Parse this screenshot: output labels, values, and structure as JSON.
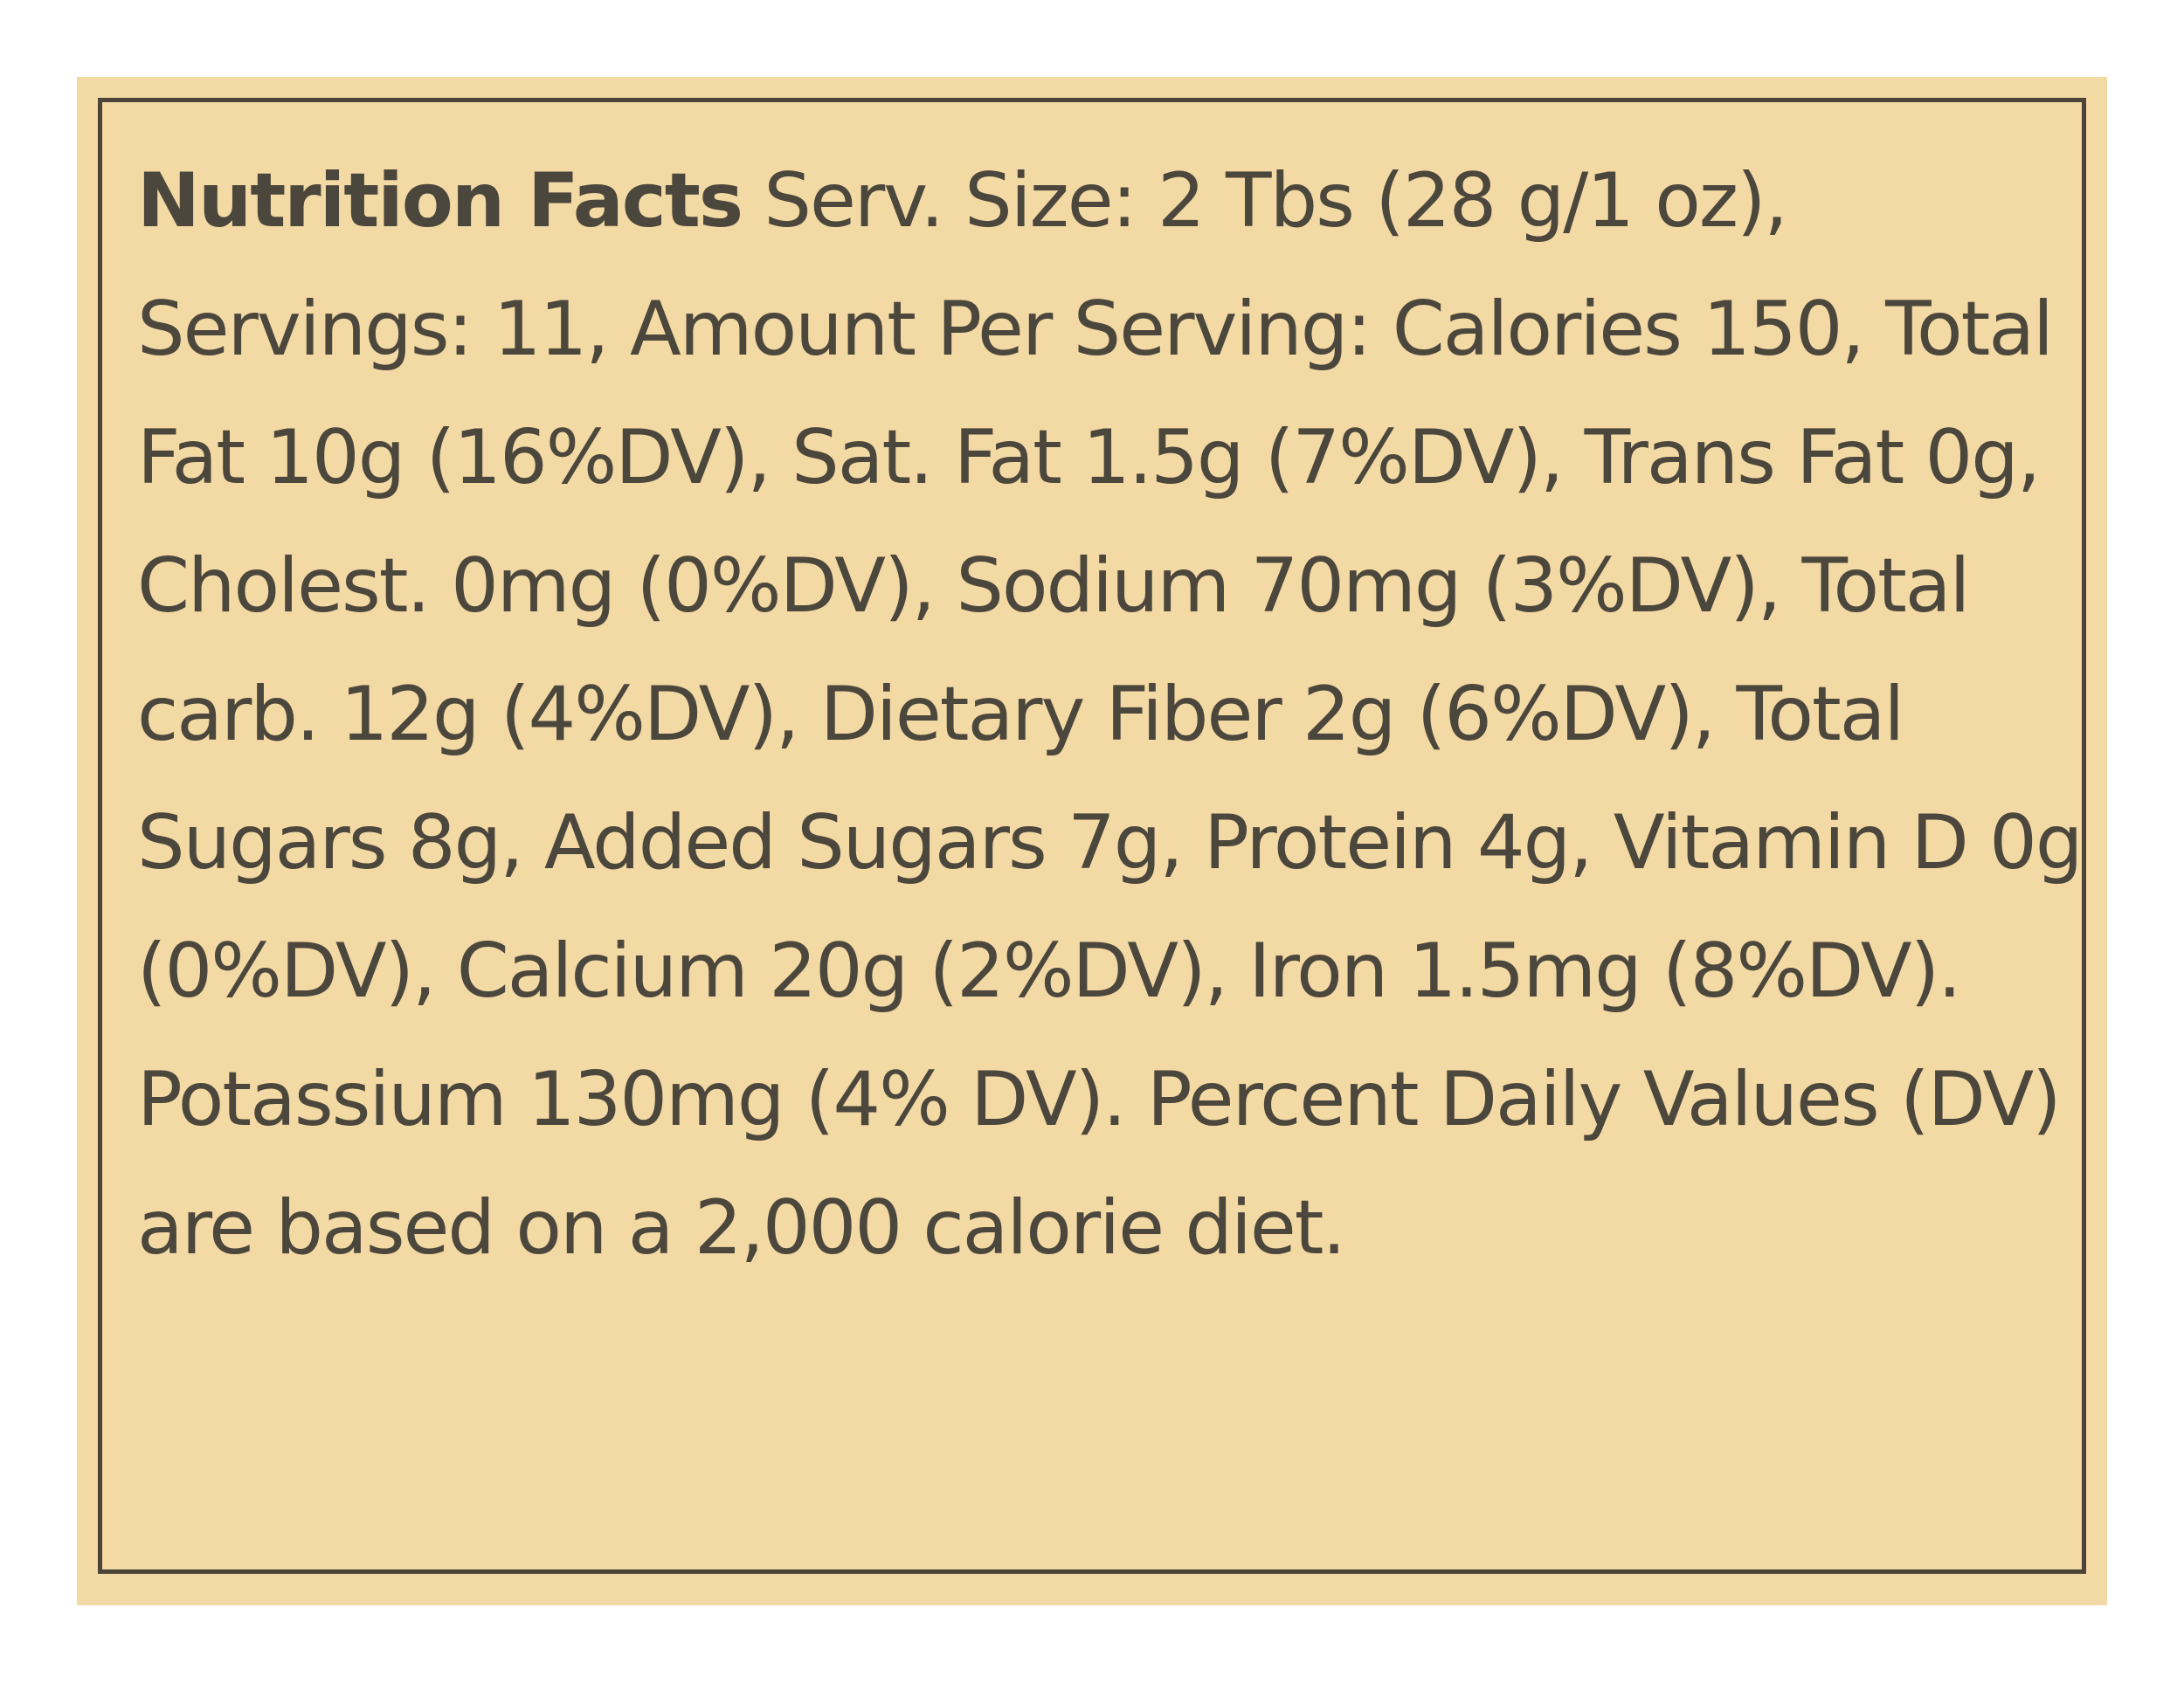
{
  "label": {
    "heading": "Nutrition Facts",
    "body": " Serv. Size: 2 Tbs  (28 g/1 oz), Servings: 11, Amount Per Serving: Calories 150, Total Fat 10g (16%DV), Sat. Fat 1.5g (7%DV), Trans Fat 0g, Cholest. 0mg (0%DV), Sodium 70mg (3%DV), Total carb. 12g (4%DV), Dietary Fiber 2g  (6%DV), Total Sugars 8g, Added Sugars 7g, Protein 4g, Vitamin D 0g (0%DV), Calcium 20g (2%DV), Iron 1.5mg (8%DV). Potassium 130mg (4% DV). Percent Daily Values (DV) are based on a 2,000 calorie diet.",
    "background_color": "#f3d9a4",
    "text_color": "#4c473c",
    "border_color": "#4a4538"
  }
}
